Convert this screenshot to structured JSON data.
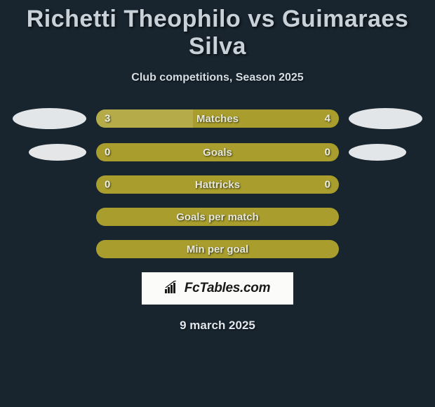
{
  "background_color": "#18242e",
  "title": "Richetti Theophilo vs Guimaraes Silva",
  "title_fontsize": 34,
  "title_color": "#c8d0d8",
  "subtitle": "Club competitions, Season 2025",
  "subtitle_fontsize": 16,
  "subtitle_color": "#d5dde4",
  "bar_base_color": "#a99e2d",
  "bar_label_color": "#e6e8dc",
  "bar_label_fontsize": 15,
  "rows": [
    {
      "label": "Matches",
      "left_value": "3",
      "right_value": "4",
      "left_fill_pct": 40,
      "left_fill_color": "#b5ac49",
      "show_ellipses": true,
      "ellipse_left_color": "#e2e6e8",
      "ellipse_right_color": "#e3e6e8",
      "ellipse_size": "large"
    },
    {
      "label": "Goals",
      "left_value": "0",
      "right_value": "0",
      "left_fill_pct": 0,
      "left_fill_color": "#b5ac49",
      "show_ellipses": true,
      "ellipse_left_color": "#e4e6e8",
      "ellipse_right_color": "#e3e6e8",
      "ellipse_size": "small"
    },
    {
      "label": "Hattricks",
      "left_value": "0",
      "right_value": "0",
      "left_fill_pct": 0,
      "left_fill_color": "#b5ac49",
      "show_ellipses": false
    },
    {
      "label": "Goals per match",
      "left_value": "",
      "right_value": "",
      "left_fill_pct": 0,
      "show_ellipses": false
    },
    {
      "label": "Min per goal",
      "left_value": "",
      "right_value": "",
      "left_fill_pct": 0,
      "show_ellipses": false
    }
  ],
  "logo_text": "FcTables.com",
  "logo_bg": "#fbfbf9",
  "logo_text_color": "#1a1a1a",
  "date": "9 march 2025",
  "date_fontsize": 17,
  "date_color": "#e0e6ec"
}
